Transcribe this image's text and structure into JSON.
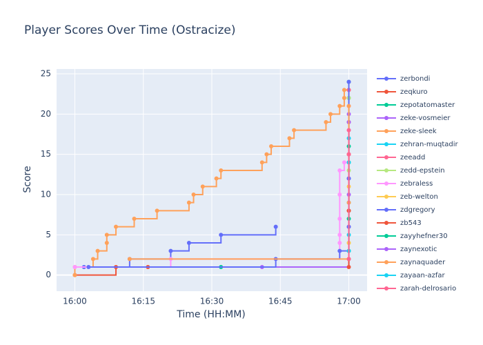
{
  "chart_data": {
    "type": "step",
    "title": "Player Scores Over Time (Ostracize)",
    "x_label": "Time (HH:MM)",
    "y_label": "Score",
    "xlim": [
      "15:56",
      "17:04"
    ],
    "xticks": [
      "16:00",
      "16:15",
      "16:30",
      "16:45",
      "17:00"
    ],
    "ylim": [
      -2,
      25.6
    ],
    "yticks": [
      0,
      5,
      10,
      15,
      20,
      25
    ],
    "grid": true,
    "series": [
      {
        "name": "zerbondi",
        "color": "#636efa",
        "x": [
          "16:02",
          "16:12",
          "16:21",
          "16:25",
          "16:32",
          "16:44"
        ],
        "values": [
          1,
          2,
          3,
          4,
          5,
          6
        ]
      },
      {
        "name": "zeqkuro",
        "color": "#ef553b",
        "x": [
          "16:00",
          "16:09",
          "16:16",
          "17:00",
          "17:00",
          "17:00",
          "17:00"
        ],
        "values": [
          0,
          1,
          1,
          2,
          8,
          15,
          23
        ]
      },
      {
        "name": "zepotatomaster",
        "color": "#00cc96",
        "x": [
          "16:32",
          "17:00",
          "17:00",
          "17:00"
        ],
        "values": [
          1,
          3,
          14,
          22
        ]
      },
      {
        "name": "zeke-vosmeier",
        "color": "#ab63fa",
        "x": [
          "16:41",
          "17:00",
          "17:00"
        ],
        "values": [
          1,
          12,
          20
        ]
      },
      {
        "name": "zeke-sleek",
        "color": "#ffa15a",
        "x": [
          "16:00",
          "16:00",
          "16:04",
          "16:05",
          "16:07",
          "16:07",
          "16:09",
          "16:13",
          "16:18",
          "16:25",
          "16:26",
          "16:28",
          "16:31",
          "16:32",
          "16:41",
          "16:42",
          "16:43",
          "16:47",
          "16:48",
          "16:55",
          "16:56",
          "16:58",
          "16:59",
          "16:59",
          "17:00"
        ],
        "values": [
          0,
          1,
          2,
          3,
          4,
          5,
          6,
          7,
          8,
          9,
          10,
          11,
          12,
          13,
          14,
          15,
          16,
          17,
          18,
          19,
          20,
          21,
          22,
          23,
          24
        ]
      },
      {
        "name": "zehran-muqtadir",
        "color": "#19d3f3",
        "x": [
          "17:00",
          "17:00",
          "17:00",
          "17:00"
        ],
        "values": [
          5,
          9,
          17,
          24
        ]
      },
      {
        "name": "zeeadd",
        "color": "#ff6692",
        "x": [
          "17:00",
          "17:00",
          "17:00"
        ],
        "values": [
          6,
          15,
          23
        ]
      },
      {
        "name": "zedd-epstein",
        "color": "#b6e880",
        "x": [
          "17:00",
          "17:00",
          "17:00"
        ],
        "values": [
          4,
          13,
          22
        ]
      },
      {
        "name": "zebraless",
        "color": "#ff97ff",
        "x": [
          "16:00",
          "16:21",
          "16:58",
          "16:58",
          "16:58",
          "16:58",
          "16:58",
          "16:59",
          "17:00",
          "17:00"
        ],
        "values": [
          1,
          2,
          4,
          5,
          7,
          10,
          13,
          14,
          18,
          21
        ]
      },
      {
        "name": "zeb-welton",
        "color": "#fecb52",
        "x": [
          "17:00",
          "17:00"
        ],
        "values": [
          4,
          11
        ]
      },
      {
        "name": "zdgregory",
        "color": "#636efa",
        "x": [
          "16:03",
          "16:44",
          "16:58",
          "17:00",
          "17:00",
          "17:00"
        ],
        "values": [
          1,
          2,
          3,
          6,
          12,
          24
        ]
      },
      {
        "name": "zb543",
        "color": "#ef553b",
        "x": [
          "17:00",
          "17:00",
          "17:00"
        ],
        "values": [
          1,
          8,
          19
        ]
      },
      {
        "name": "zayyhefner30",
        "color": "#00cc96",
        "x": [
          "17:00",
          "17:00"
        ],
        "values": [
          7,
          16
        ]
      },
      {
        "name": "zaynexotic",
        "color": "#ab63fa",
        "x": [
          "17:00",
          "17:00"
        ],
        "values": [
          10,
          19
        ]
      },
      {
        "name": "zaynaquader",
        "color": "#ffa15a",
        "x": [
          "16:12",
          "17:00",
          "17:00"
        ],
        "values": [
          2,
          9,
          21
        ]
      },
      {
        "name": "zayaan-azfar",
        "color": "#19d3f3",
        "x": [
          "17:00",
          "17:00"
        ],
        "values": [
          3,
          14
        ]
      },
      {
        "name": "zarah-delrosario",
        "color": "#ff6692",
        "x": [
          "17:00",
          "17:00",
          "17:00"
        ],
        "values": [
          2,
          15,
          18
        ]
      }
    ]
  }
}
